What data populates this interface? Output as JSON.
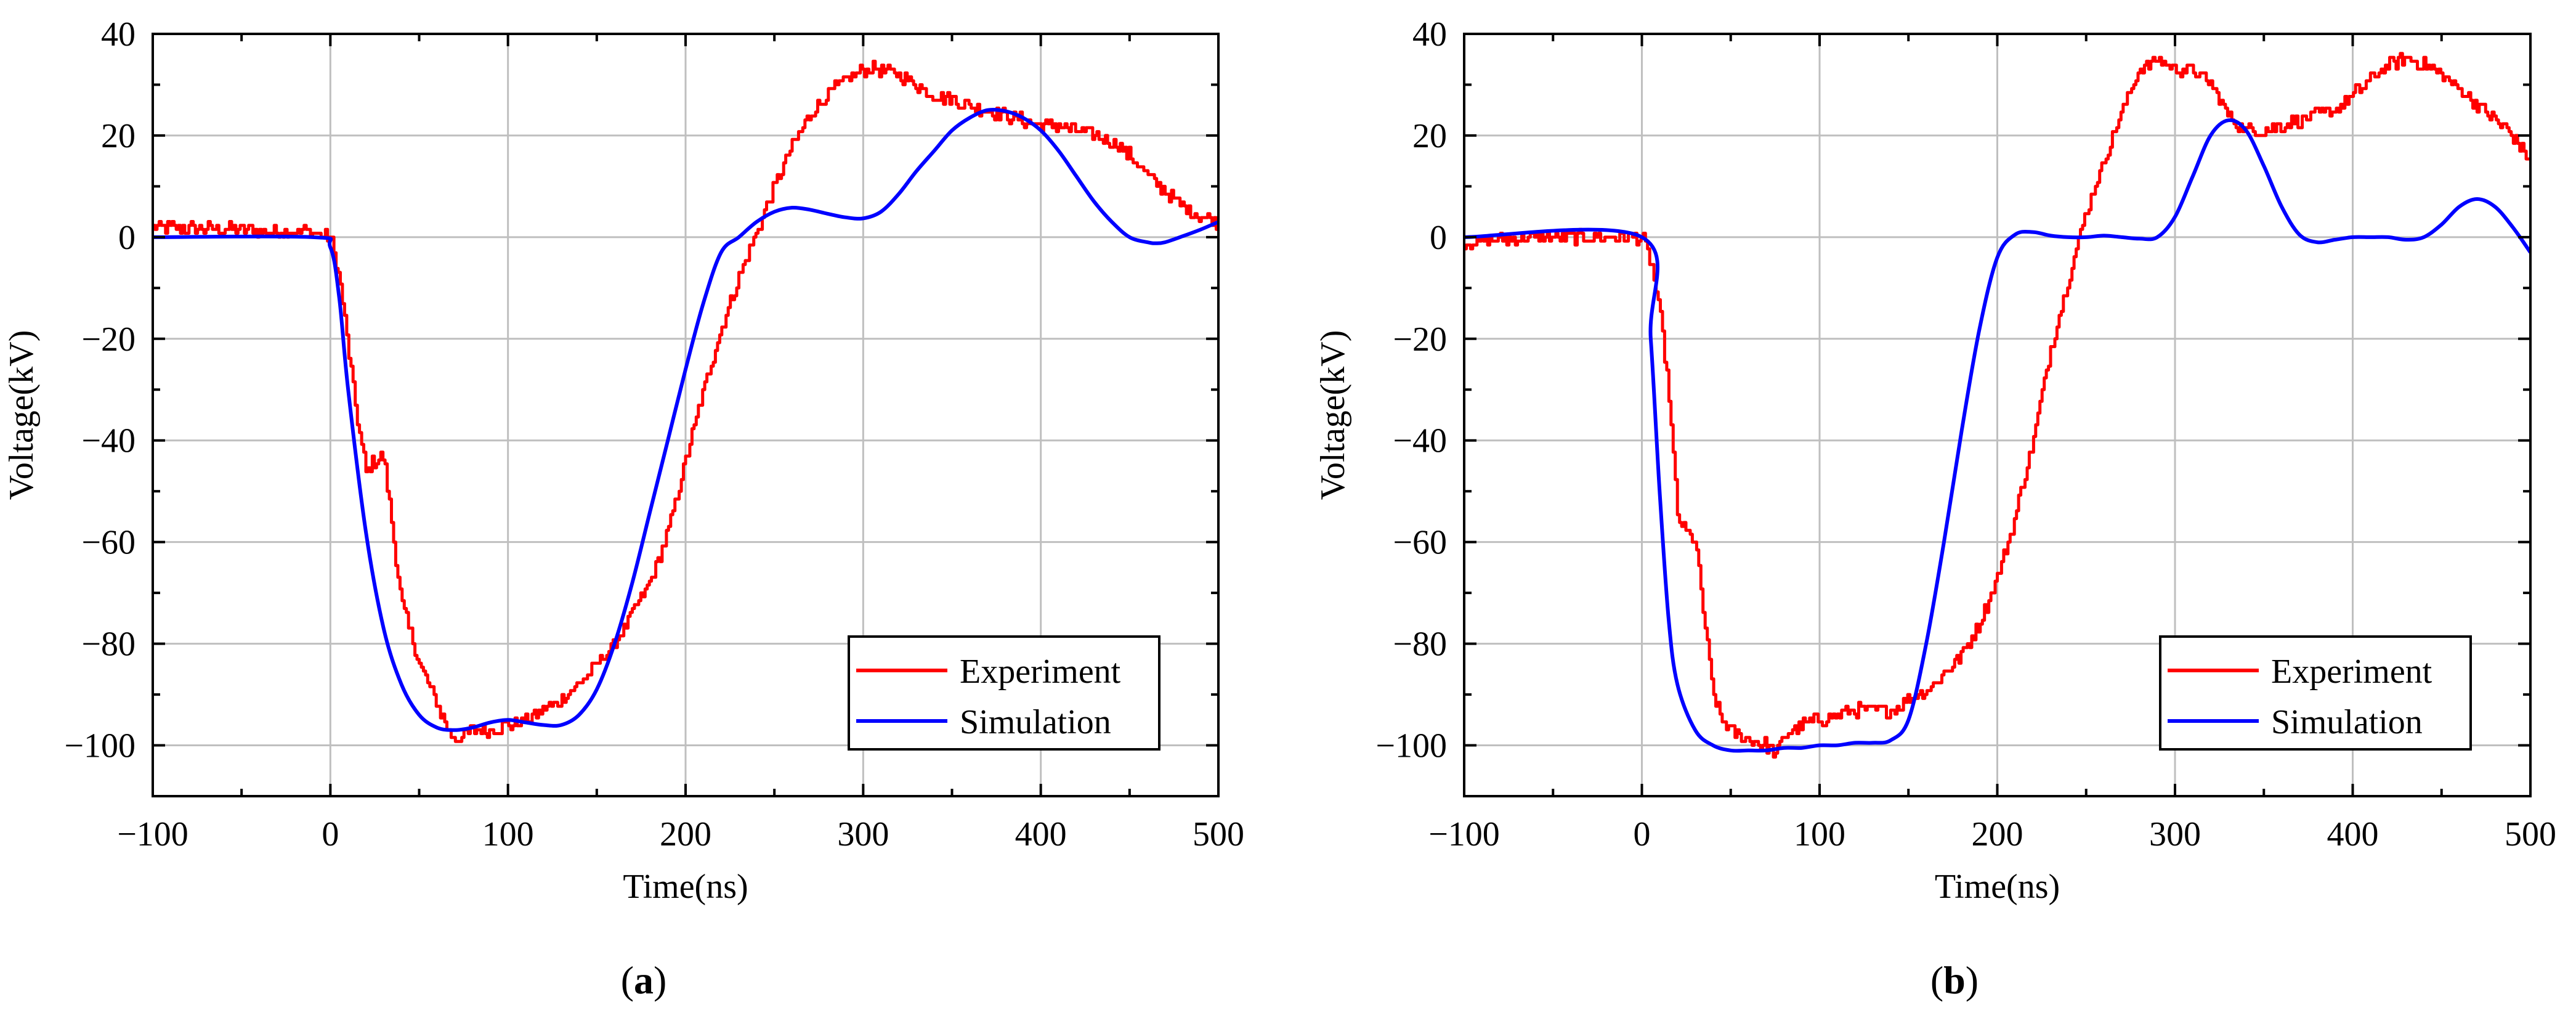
{
  "colors": {
    "experiment": "#ff0000",
    "simulation": "#0000ff",
    "grid": "#bfbfbf",
    "axis": "#000000"
  },
  "chart_data": [
    {
      "type": "line",
      "panel_label_bold": "a",
      "xlabel": "Time(ns)",
      "ylabel": "Voltage(kV)",
      "xlim": [
        -100,
        500
      ],
      "ylim": [
        -110,
        40
      ],
      "xticks": [
        -100,
        0,
        100,
        200,
        300,
        400,
        500
      ],
      "xtick_labels": [
        "−100",
        "0",
        "100",
        "200",
        "300",
        "400",
        "500"
      ],
      "yticks": [
        40,
        20,
        0,
        -20,
        -40,
        -60,
        -80,
        -100
      ],
      "ytick_labels": [
        "40",
        "20",
        "0",
        "−20",
        "−40",
        "−60",
        "−80",
        "−100"
      ],
      "grid": true,
      "legend": {
        "position": "bottom-right",
        "entries": [
          "Experiment",
          "Simulation"
        ]
      },
      "series": [
        {
          "name": "Experiment",
          "color": "#ff0000",
          "noisy": true,
          "x": [
            -100,
            -50,
            -10,
            0,
            5,
            10,
            15,
            20,
            25,
            30,
            35,
            40,
            50,
            60,
            65,
            70,
            80,
            90,
            100,
            110,
            120,
            130,
            140,
            150,
            160,
            170,
            180,
            190,
            200,
            210,
            220,
            230,
            240,
            250,
            260,
            270,
            280,
            290,
            300,
            310,
            320,
            330,
            340,
            350,
            360,
            370,
            380,
            390,
            400,
            410,
            420,
            430,
            440,
            450,
            460,
            470,
            480,
            490,
            500
          ],
          "y": [
            2,
            1.5,
            1,
            0,
            -8,
            -22,
            -36,
            -46,
            -44,
            -43,
            -58,
            -72,
            -84,
            -92,
            -96,
            -99,
            -97,
            -97,
            -96,
            -95,
            -93,
            -91,
            -88,
            -84,
            -80,
            -74,
            -68,
            -58,
            -44,
            -30,
            -18,
            -8,
            1,
            10,
            18,
            24,
            28,
            31,
            33,
            33,
            32,
            30,
            28,
            27,
            26,
            25,
            24,
            23,
            22,
            22,
            21,
            20,
            19,
            16,
            12,
            9,
            6,
            4,
            3
          ]
        },
        {
          "name": "Simulation",
          "color": "#0000ff",
          "noisy": false,
          "x": [
            -100,
            -10,
            0,
            5,
            10,
            20,
            30,
            40,
            50,
            60,
            70,
            80,
            90,
            100,
            110,
            120,
            130,
            140,
            150,
            160,
            170,
            180,
            190,
            200,
            210,
            220,
            230,
            240,
            250,
            260,
            270,
            280,
            290,
            300,
            310,
            320,
            330,
            340,
            350,
            360,
            370,
            380,
            390,
            400,
            410,
            420,
            430,
            440,
            450,
            460,
            465,
            470,
            480,
            490,
            500
          ],
          "y": [
            0,
            0,
            -2,
            -12,
            -30,
            -58,
            -77,
            -88,
            -94,
            -96.5,
            -97,
            -96.5,
            -95.5,
            -95,
            -95.5,
            -96,
            -96,
            -94,
            -89,
            -80,
            -68,
            -54,
            -40,
            -26,
            -13,
            -3,
            0,
            3,
            5,
            5.8,
            5.4,
            4.6,
            3.9,
            3.7,
            5,
            8.5,
            13,
            17,
            21,
            23.5,
            25,
            24.8,
            23.5,
            21,
            17,
            12,
            7,
            3,
            0,
            -1,
            -1.2,
            -1,
            0.2,
            1.5,
            3
          ]
        }
      ]
    },
    {
      "type": "line",
      "panel_label_bold": "b",
      "xlabel": "Time(ns)",
      "ylabel": "Voltage(kV)",
      "xlim": [
        -100,
        500
      ],
      "ylim": [
        -110,
        40
      ],
      "xticks": [
        -100,
        0,
        100,
        200,
        300,
        400,
        500
      ],
      "xtick_labels": [
        "−100",
        "0",
        "100",
        "200",
        "300",
        "400",
        "500"
      ],
      "yticks": [
        40,
        20,
        0,
        -20,
        -40,
        -60,
        -80,
        -100
      ],
      "ytick_labels": [
        "40",
        "20",
        "0",
        "−20",
        "−40",
        "−60",
        "−80",
        "−100"
      ],
      "grid": true,
      "legend": {
        "position": "bottom-right",
        "entries": [
          "Experiment",
          "Simulation"
        ]
      },
      "series": [
        {
          "name": "Experiment",
          "color": "#ff0000",
          "noisy": true,
          "x": [
            -100,
            -50,
            0,
            5,
            10,
            15,
            20,
            25,
            30,
            35,
            40,
            45,
            50,
            55,
            60,
            70,
            75,
            80,
            90,
            100,
            110,
            120,
            130,
            140,
            150,
            160,
            170,
            180,
            190,
            200,
            210,
            220,
            230,
            240,
            250,
            260,
            270,
            280,
            290,
            300,
            310,
            320,
            330,
            340,
            350,
            360,
            370,
            380,
            390,
            400,
            410,
            420,
            430,
            440,
            450,
            460,
            470,
            480,
            490,
            500
          ],
          "y": [
            -1,
            0,
            0,
            -5,
            -15,
            -30,
            -55,
            -58,
            -60,
            -75,
            -90,
            -95,
            -97,
            -98,
            -99,
            -100,
            -102,
            -98,
            -96,
            -95,
            -94,
            -93,
            -93,
            -93,
            -91,
            -89,
            -86,
            -82,
            -76,
            -67,
            -55,
            -40,
            -22,
            -8,
            5,
            15,
            25,
            33,
            35,
            33,
            33,
            30,
            24,
            21,
            21,
            22,
            23,
            24,
            25,
            28,
            31,
            34,
            35,
            34,
            32,
            29,
            26,
            23,
            20,
            15
          ]
        },
        {
          "name": "Simulation",
          "color": "#0000ff",
          "noisy": false,
          "x": [
            -100,
            0,
            5,
            10,
            15,
            20,
            30,
            40,
            50,
            60,
            70,
            80,
            90,
            100,
            110,
            120,
            130,
            140,
            150,
            160,
            170,
            180,
            190,
            200,
            210,
            220,
            230,
            240,
            250,
            260,
            270,
            280,
            290,
            300,
            310,
            320,
            330,
            340,
            350,
            360,
            370,
            380,
            390,
            400,
            410,
            420,
            430,
            440,
            450,
            460,
            470,
            480,
            490,
            500
          ],
          "y": [
            0,
            0,
            -20,
            -50,
            -75,
            -88,
            -97,
            -100,
            -101,
            -101,
            -101,
            -100.5,
            -100.5,
            -100,
            -100,
            -99.5,
            -99.5,
            -99,
            -95,
            -80,
            -60,
            -38,
            -18,
            -4,
            0.5,
            1,
            0.3,
            0,
            0,
            0.3,
            0,
            -0.3,
            0,
            4,
            12,
            20,
            23,
            21,
            14,
            6,
            0.5,
            -1,
            -0.5,
            0,
            0,
            0,
            -0.5,
            0,
            2.5,
            6,
            7.5,
            6,
            2,
            -3
          ]
        }
      ]
    }
  ]
}
